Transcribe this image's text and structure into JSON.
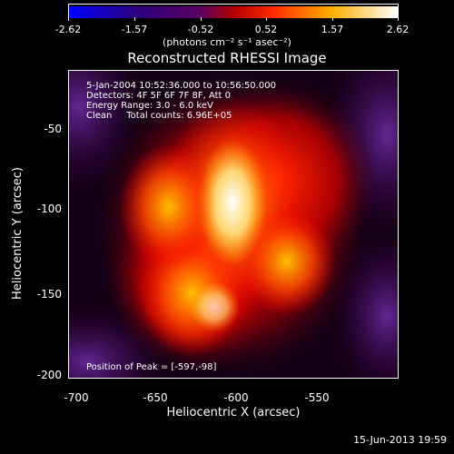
{
  "colorbar": {
    "ticks": [
      "-2.62",
      "-1.57",
      "-0.52",
      "0.52",
      "1.57",
      "2.62"
    ],
    "units": "(photons cm⁻² s⁻¹ asec⁻²)"
  },
  "title": "Reconstructed RHESSI Image",
  "info": {
    "line1": "5-Jan-2004 10:52:36.000 to 10:56:50.000",
    "line2": "Detectors: 4F 5F 6F 7F 8F, Att 0",
    "line3": "Energy Range: 3.0 - 6.0 keV",
    "line4": "Clean     Total counts: 6.96E+05"
  },
  "peak_text": "Position of Peak = [-597,-98]",
  "axes": {
    "xlabel": "Heliocentric X (arcsec)",
    "ylabel": "Heliocentric Y (arcsec)",
    "xticks": [
      "-700",
      "-650",
      "-600",
      "-550"
    ],
    "yticks": [
      "-50",
      "-100",
      "-150",
      "-200"
    ]
  },
  "timestamp": "15-Jun-2013 19:59"
}
